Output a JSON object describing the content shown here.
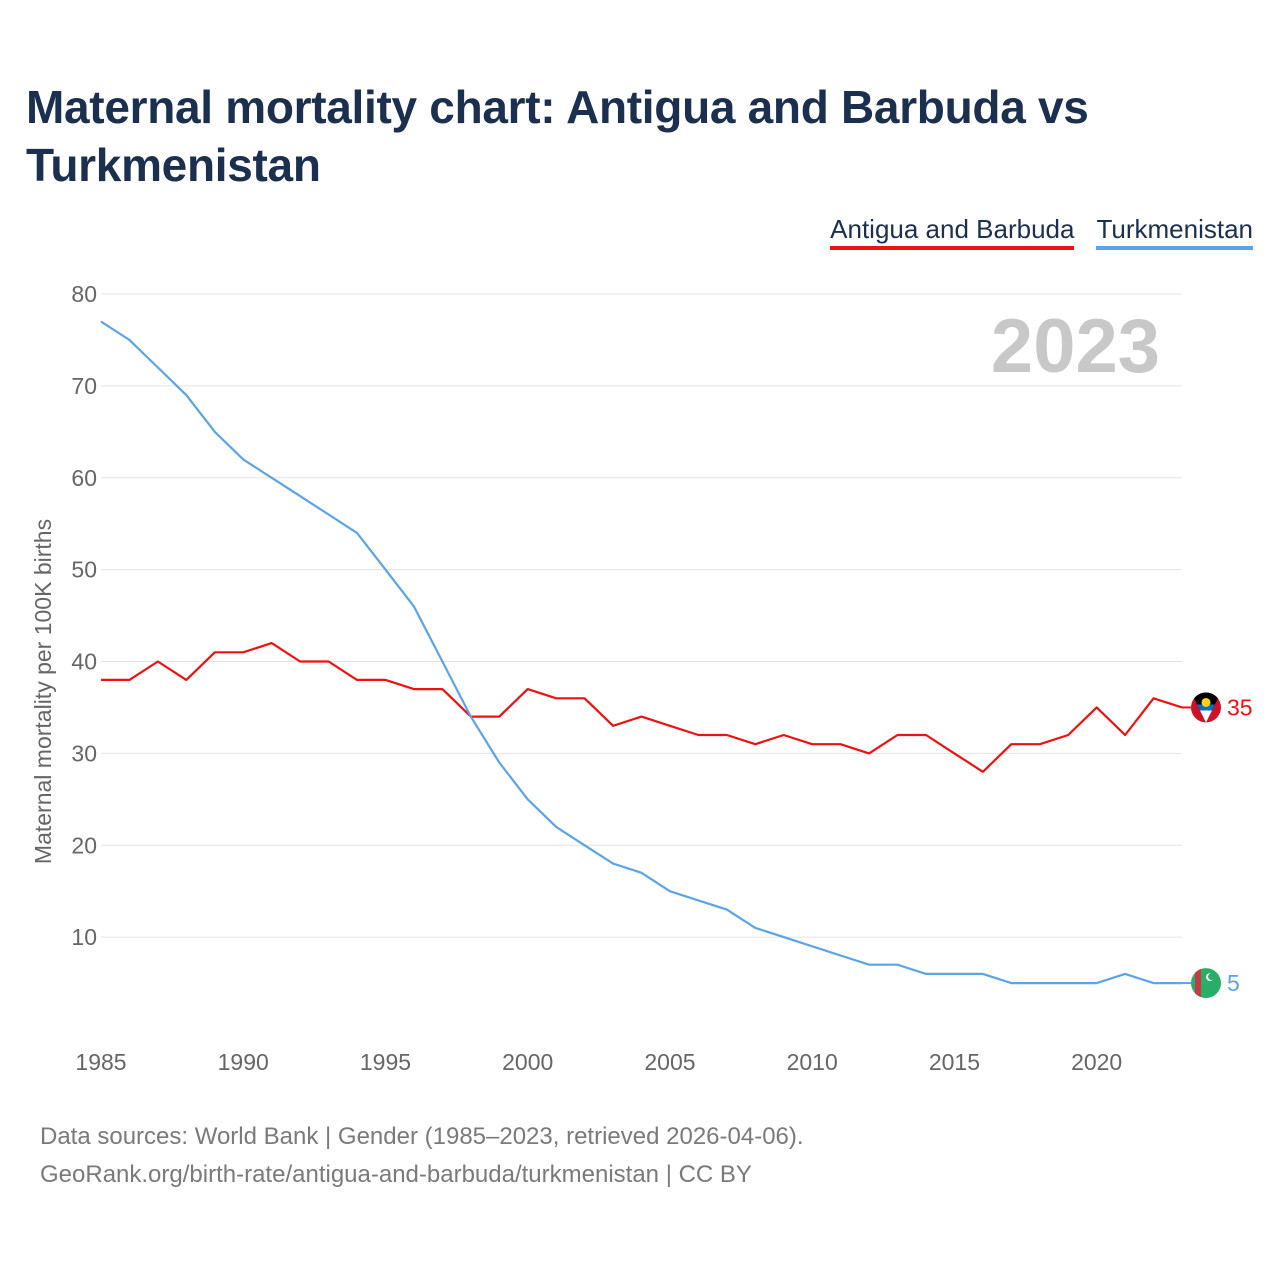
{
  "title": "Maternal mortality chart: Antigua and Barbuda vs Turkmenistan",
  "legend": [
    {
      "label": "Antigua and Barbuda",
      "color": "#ee1111"
    },
    {
      "label": "Turkmenistan",
      "color": "#5ba4e6"
    }
  ],
  "year_watermark": "2023",
  "footer": {
    "line1": "Data sources: World Bank | Gender (1985–2023, retrieved 2026-04-06).",
    "line2": "GeoRank.org/birth-rate/antigua-and-barbuda/turkmenistan | CC BY"
  },
  "chart_data": {
    "type": "line",
    "ylabel": "Maternal mortality per 100K births",
    "xlabel": "",
    "xlim": [
      1985,
      2023
    ],
    "ylim": [
      0,
      80
    ],
    "yticks": [
      10,
      20,
      30,
      40,
      50,
      60,
      70,
      80
    ],
    "xticks": [
      1985,
      1990,
      1995,
      2000,
      2005,
      2010,
      2015,
      2020
    ],
    "grid": true,
    "x": [
      1985,
      1986,
      1987,
      1988,
      1989,
      1990,
      1991,
      1992,
      1993,
      1994,
      1995,
      1996,
      1997,
      1998,
      1999,
      2000,
      2001,
      2002,
      2003,
      2004,
      2005,
      2006,
      2007,
      2008,
      2009,
      2010,
      2011,
      2012,
      2013,
      2014,
      2015,
      2016,
      2017,
      2018,
      2019,
      2020,
      2021,
      2022,
      2023
    ],
    "series": [
      {
        "name": "Antigua and Barbuda",
        "color": "#ee1111",
        "end_label": "35",
        "values": [
          38,
          38,
          40,
          38,
          41,
          41,
          42,
          40,
          40,
          38,
          38,
          37,
          37,
          34,
          34,
          37,
          36,
          36,
          33,
          34,
          33,
          32,
          32,
          31,
          32,
          31,
          31,
          30,
          32,
          32,
          30,
          28,
          31,
          31,
          32,
          35,
          32,
          36,
          35
        ]
      },
      {
        "name": "Turkmenistan",
        "color": "#5ba4e6",
        "end_label": "5",
        "values": [
          77,
          75,
          72,
          69,
          65,
          62,
          60,
          58,
          56,
          54,
          50,
          46,
          40,
          34,
          29,
          25,
          22,
          20,
          18,
          17,
          15,
          14,
          13,
          11,
          10,
          9,
          8,
          7,
          7,
          6,
          6,
          6,
          5,
          5,
          5,
          5,
          6,
          5,
          5
        ]
      }
    ]
  }
}
